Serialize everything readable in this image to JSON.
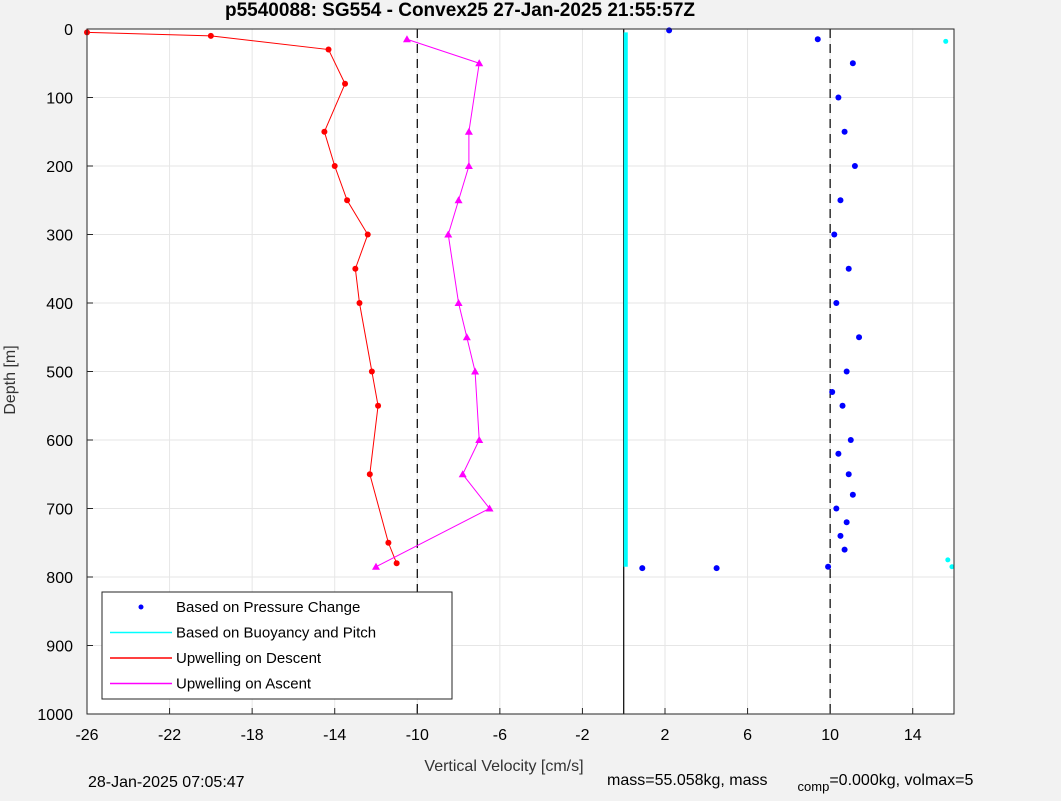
{
  "chart_data": {
    "type": "scatter",
    "title": "p5540088: SG554 - Convex25 27-Jan-2025 21:55:57Z",
    "xlabel": "Vertical Velocity [cm/s]",
    "ylabel": "Depth [m]",
    "xlim": [
      -26,
      16
    ],
    "ylim": [
      1000,
      0
    ],
    "y_reversed": true,
    "x_ticks": [
      -26,
      -22,
      -18,
      -14,
      -10,
      -6,
      -2,
      2,
      6,
      10,
      14
    ],
    "y_ticks": [
      0,
      100,
      200,
      300,
      400,
      500,
      600,
      700,
      800,
      900,
      1000
    ],
    "grid": true,
    "legend_placement": "bottom-left",
    "reference_lines": [
      {
        "x": -10,
        "style": "dashed"
      },
      {
        "x": 10,
        "style": "dashed"
      },
      {
        "x": 0,
        "style": "solid"
      }
    ],
    "series": [
      {
        "name": "Based on Pressure Change",
        "color": "#0000ff",
        "marker": "dot",
        "x": [
          2.2,
          9.4,
          11.1,
          10.4,
          10.7,
          11.2,
          10.5,
          10.2,
          10.9,
          10.3,
          11.4,
          10.8,
          10.1,
          10.6,
          11.0,
          10.4,
          10.9,
          11.1,
          10.3,
          10.8,
          10.5,
          10.7,
          9.9,
          4.5,
          0.9
        ],
        "y": [
          2,
          15,
          50,
          100,
          150,
          200,
          250,
          300,
          350,
          400,
          450,
          500,
          530,
          550,
          600,
          620,
          650,
          680,
          700,
          720,
          740,
          760,
          785,
          787,
          787
        ]
      },
      {
        "name": "Based on Buoyancy and Pitch",
        "color": "#00ffff",
        "marker": "line",
        "x": [
          0.1,
          0.1,
          0.1,
          0.1,
          15.6,
          15.7,
          15.9
        ],
        "y": [
          5,
          300,
          600,
          785,
          18,
          775,
          785
        ]
      },
      {
        "name": "Upwelling on Descent",
        "color": "#ff0000",
        "marker": "dot-line",
        "x": [
          -26,
          -20,
          -14.3,
          -13.5,
          -14.5,
          -14.0,
          -13.4,
          -12.4,
          -13.0,
          -12.8,
          -12.2,
          -11.9,
          -12.3,
          -11.4,
          -11.0
        ],
        "y": [
          5,
          10,
          30,
          80,
          150,
          200,
          250,
          300,
          350,
          400,
          500,
          550,
          650,
          750,
          780
        ]
      },
      {
        "name": "Upwelling on Ascent",
        "color": "#ff00ff",
        "marker": "triangle",
        "x": [
          -10.5,
          -7.0,
          -7.5,
          -7.5,
          -8.0,
          -8.5,
          -8.0,
          -7.6,
          -7.2,
          -7.0,
          -7.8,
          -6.5,
          -12.0
        ],
        "y": [
          15,
          50,
          150,
          200,
          250,
          300,
          400,
          450,
          500,
          600,
          650,
          700,
          785
        ]
      }
    ]
  },
  "footer": {
    "timestamp": "28-Jan-2025 07:05:47",
    "mass_text": "mass=55.058kg, mass",
    "comp_sub": "comp",
    "comp_rest": "=0.000kg, volmax=5"
  }
}
